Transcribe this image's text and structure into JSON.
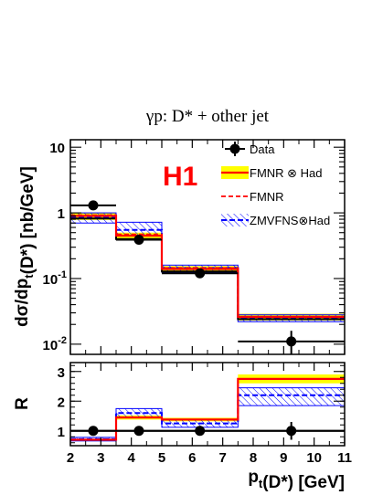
{
  "chart_data": [
    {
      "type": "step",
      "title": "γp:  D* + other jet",
      "label": "H1",
      "label_color": "#ff0000",
      "ylabel": "dσ/dp_t(D*)  [nb/GeV]",
      "y_scale": "log",
      "ylim": [
        0.007,
        13
      ],
      "xlim": [
        2,
        11
      ],
      "x_ticks": [
        "2",
        "3",
        "4",
        "5",
        "6",
        "7",
        "8",
        "9",
        "10",
        "11"
      ],
      "y_ticks": [
        "10",
        "1",
        "10-1",
        "10-2"
      ],
      "bin_edges": [
        2,
        3.5,
        5,
        7.5,
        11
      ],
      "legend_position": "top-right",
      "series": [
        {
          "name": "Data",
          "kind": "points",
          "color": "#000000",
          "x": [
            2.75,
            4.25,
            6.25,
            9.25
          ],
          "y": [
            1.3,
            0.39,
            0.12,
            0.011
          ],
          "yerr_low": [
            0.1,
            0.035,
            0.012,
            0.004
          ],
          "yerr_high": [
            0.1,
            0.035,
            0.012,
            0.005
          ],
          "xerr": [
            0.75,
            0.75,
            1.25,
            1.75
          ]
        },
        {
          "name": "FMNR ⊗ Had",
          "kind": "band",
          "line_color": "#ff0000",
          "band_color": "#ffff00",
          "values": [
            0.9,
            0.45,
            0.14,
            0.026
          ],
          "lower": [
            0.78,
            0.4,
            0.127,
            0.023
          ],
          "upper": [
            1.0,
            0.5,
            0.155,
            0.029
          ]
        },
        {
          "name": "FMNR",
          "kind": "line",
          "style": "dashed",
          "color": "#ff0000",
          "values": [
            0.92,
            0.47,
            0.145,
            0.026
          ]
        },
        {
          "name": "ZMVFNS⊗Had",
          "kind": "hatched-band",
          "color": "#0000ff",
          "values": [
            0.85,
            0.55,
            0.145,
            0.025
          ],
          "lower": [
            0.7,
            0.45,
            0.125,
            0.022
          ],
          "upper": [
            1.0,
            0.72,
            0.16,
            0.028
          ]
        },
        {
          "name": "",
          "kind": "line",
          "color": "#000000",
          "values": [
            0.82,
            0.4,
            0.128,
            0.024
          ]
        }
      ]
    },
    {
      "type": "step",
      "title": "",
      "ylabel": "R",
      "xlabel": "p_t(D*) [GeV]",
      "ylim": [
        0.5,
        3.3
      ],
      "xlim": [
        2,
        11
      ],
      "x_ticks": [
        "2",
        "3",
        "4",
        "5",
        "6",
        "7",
        "8",
        "9",
        "10",
        "11"
      ],
      "y_ticks": [
        "1",
        "2",
        "3"
      ],
      "bin_edges": [
        2,
        3.5,
        5,
        7.5,
        11
      ],
      "series": [
        {
          "name": "Data",
          "kind": "points",
          "color": "#000000",
          "x": [
            2.75,
            4.25,
            6.25,
            9.25
          ],
          "y": [
            1.0,
            1.0,
            1.0,
            1.0
          ],
          "yerr_low": [
            0.03,
            0.04,
            0.06,
            0.3
          ],
          "yerr_high": [
            0.03,
            0.04,
            0.06,
            0.3
          ],
          "xerr": [
            0.75,
            0.75,
            1.25,
            1.75
          ]
        },
        {
          "name": "FMNR ⊗ Had",
          "kind": "band",
          "line_color": "#ff0000",
          "band_color": "#ffff00",
          "values": [
            0.7,
            1.45,
            1.38,
            2.75
          ],
          "lower": [
            0.68,
            1.38,
            1.32,
            2.6
          ],
          "upper": [
            0.72,
            1.52,
            1.44,
            2.9
          ]
        },
        {
          "name": "ZMVFNS⊗Had",
          "kind": "hatched-band",
          "color": "#0000ff",
          "values": [
            0.72,
            1.6,
            1.25,
            2.2
          ],
          "lower": [
            0.66,
            1.45,
            1.12,
            1.85
          ],
          "upper": [
            0.78,
            1.75,
            1.38,
            2.45
          ]
        },
        {
          "name": "",
          "kind": "line",
          "color": "#000000",
          "values": [
            1.0,
            1.0,
            1.0,
            1.0
          ]
        }
      ]
    }
  ]
}
